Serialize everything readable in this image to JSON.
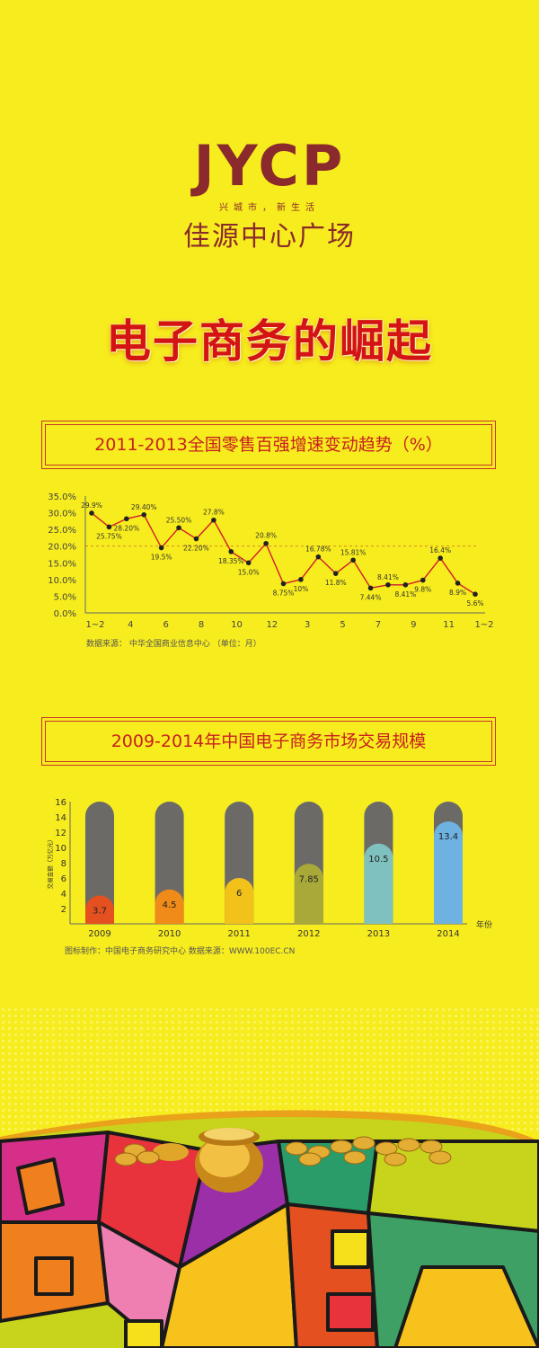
{
  "brand": {
    "logo_text": "JYCP",
    "tagline": "兴城市，新生活",
    "name_cn": "佳源中心广场",
    "color": "#8a2a2c"
  },
  "headline": "电子商务的崛起",
  "colors": {
    "background": "#f7ec1d",
    "accent_red": "#c8201f",
    "line_dark": "#1a1a1a"
  },
  "line_section": {
    "title": "2011-2013全国零售百强增速变动趋势（%）",
    "source": "数据来源：  中华全国商业信息中心    （单位：月）"
  },
  "bar_section": {
    "title": "2009-2014年中国电子商务市场交易规模",
    "source": "图标制作：中国电子商务研究中心    数据来源：WWW.100EC.CN"
  },
  "chart_data": [
    {
      "type": "line",
      "title": "2011-2013全国零售百强增速变动趋势（%）",
      "xlabel": "",
      "ylabel": "",
      "ylim": [
        0,
        35
      ],
      "y_ticks": [
        "0.0%",
        "5.0%",
        "10.0%",
        "15.0%",
        "20.0%",
        "25.0%",
        "30.0%",
        "35.0%"
      ],
      "x_tick_labels": [
        "1~2",
        "4",
        "6",
        "8",
        "10",
        "12",
        "3",
        "5",
        "7",
        "9",
        "11",
        "1~2"
      ],
      "reference_line": 20,
      "series": [
        {
          "values": [
            29.9,
            25.75,
            28.2,
            29.4,
            19.5,
            25.5,
            22.2,
            27.8,
            18.35,
            15.0,
            20.8,
            8.75,
            10,
            16.78,
            11.8,
            15.81,
            7.44,
            8.41,
            8.41,
            9.8,
            16.4,
            8.9,
            5.6
          ],
          "labels": [
            "29.9%",
            "25.75%",
            "28.20%",
            "29.40%",
            "19.5%",
            "25.50%",
            "22.20%",
            "27.8%",
            "18.35%",
            "15.0%",
            "20.8%",
            "8.75%",
            "10%",
            "16.78%",
            "11.8%",
            "15.81%",
            "7.44%",
            "8.41%",
            "8.41%",
            "9.8%",
            "16.4%",
            "8.9%",
            "5.6%"
          ]
        }
      ]
    },
    {
      "type": "bar",
      "title": "2009-2014年中国电子商务市场交易规模",
      "ylabel": "交易金额（万亿元）",
      "xlabel": "年份",
      "ylim": [
        0,
        16
      ],
      "y_ticks": [
        "2",
        "4",
        "6",
        "8",
        "10",
        "12",
        "14",
        "16"
      ],
      "categories": [
        "2009",
        "2010",
        "2011",
        "2012",
        "2013",
        "2014"
      ],
      "values": [
        3.7,
        4.5,
        6,
        7.85,
        10.5,
        13.4
      ],
      "value_labels": [
        "3.7",
        "4.5",
        "6",
        "7.85",
        "10.5",
        "13.4"
      ],
      "colors": [
        "#e4501f",
        "#f08a19",
        "#f2c21b",
        "#a9a93a",
        "#7fc1be",
        "#6db2e0"
      ],
      "track_color": "#6b6a66"
    }
  ]
}
